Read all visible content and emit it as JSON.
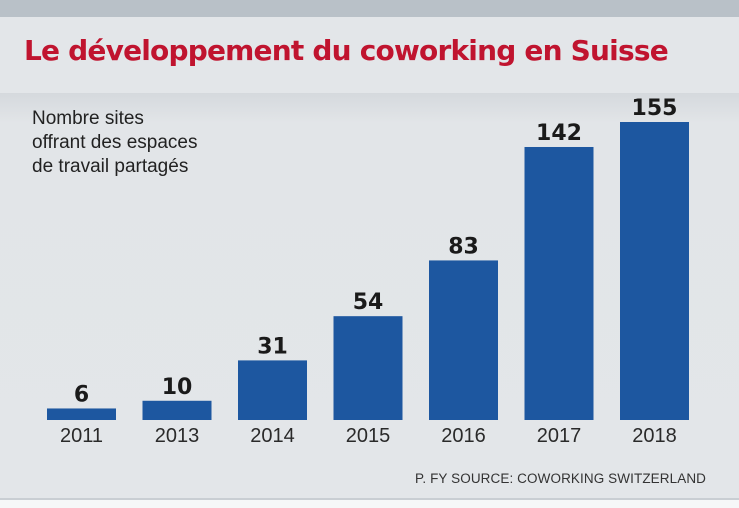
{
  "header": {
    "title": "Le développement du coworking en Suisse"
  },
  "subtitle_lines": [
    "Nombre sites",
    "offrant des espaces",
    "de travail partagés"
  ],
  "source": "P. FY SOURCE: COWORKING SWITZERLAND",
  "colors": {
    "title": "#c0142f",
    "bar": "#1d57a0",
    "value_label": "#1a1a1a",
    "tick_label": "#2a2a2a",
    "background": "#e3e6e9"
  },
  "chart_data": {
    "type": "bar",
    "title": "Le développement du coworking en Suisse",
    "subtitle": "Nombre sites offrant des espaces de travail partagés",
    "xlabel": "",
    "ylabel": "",
    "categories": [
      "2011",
      "2013",
      "2014",
      "2015",
      "2016",
      "2017",
      "2018"
    ],
    "values": [
      6,
      10,
      31,
      54,
      83,
      142,
      155
    ],
    "ylim": [
      0,
      155
    ],
    "grid": false,
    "legend": "none",
    "data_labels": true,
    "source": "P. FY SOURCE: COWORKING SWITZERLAND"
  }
}
